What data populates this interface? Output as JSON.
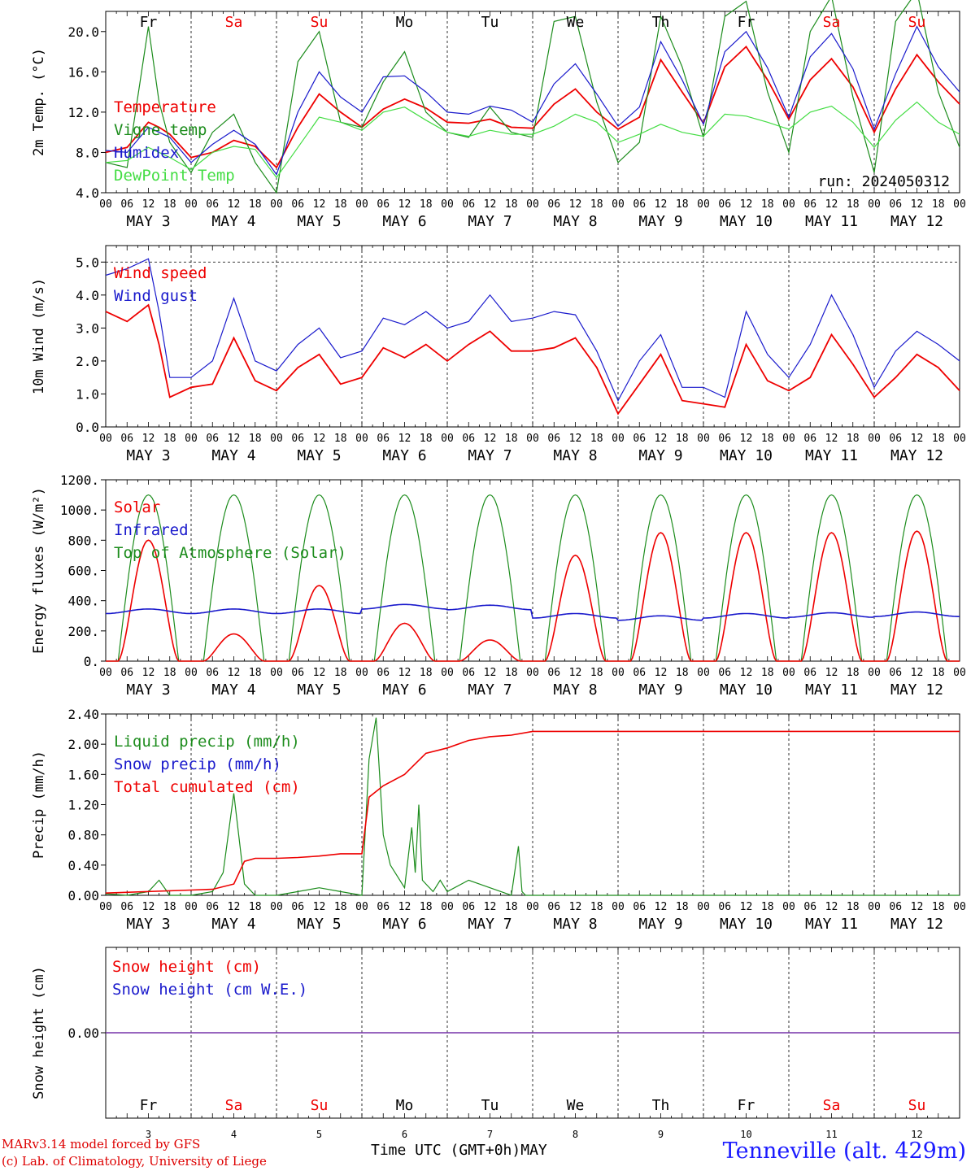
{
  "colors": {
    "red": "#ee0000",
    "green": "#1c8c1c",
    "lightgreen": "#44dd44",
    "blue": "#1a1acc",
    "purple": "#7733aa",
    "weekday": "#000000",
    "weekend": "#ee0000"
  },
  "days": {
    "weekdays": [
      "Fr",
      "Sa",
      "Su",
      "Mo",
      "Tu",
      "We",
      "Th",
      "Fr",
      "Sa",
      "Su"
    ],
    "weekend_flags": [
      false,
      true,
      true,
      false,
      false,
      false,
      false,
      false,
      true,
      true
    ],
    "dates": [
      "MAY 3",
      "MAY 4",
      "MAY 5",
      "MAY 6",
      "MAY 7",
      "MAY 8",
      "MAY 9",
      "MAY 10",
      "MAY 11",
      "MAY 12"
    ],
    "day_numbers": [
      "3",
      "4",
      "5",
      "6",
      "7",
      "8",
      "9",
      "10",
      "11",
      "12"
    ],
    "hour_ticks": [
      "00",
      "06",
      "12",
      "18"
    ],
    "final_tick": "00"
  },
  "run_label": "run: 2024050312",
  "footer": {
    "model": "MARv3.14 model forced by GFS",
    "lab": "(c) Lab. of Climatology, University of Liege",
    "axis_title": "Time UTC (GMT+0h)",
    "month": "MAY",
    "station": "Tenneville (alt. 429m)"
  },
  "chart_data": [
    {
      "type": "line",
      "ylabel": "2m Temp. (°C)",
      "ylim": [
        4.0,
        22.0
      ],
      "yticks": [
        "4.0",
        "8.0",
        "12.0",
        "16.0",
        "20.0"
      ],
      "x_hours": [
        0,
        6,
        12,
        15,
        18,
        24,
        30,
        36,
        42,
        48,
        54,
        60,
        66,
        72,
        78,
        84,
        90,
        96,
        102,
        108,
        114,
        120,
        126,
        132,
        138,
        144,
        150,
        156,
        162,
        168,
        174,
        180,
        186,
        192,
        198,
        204,
        210,
        216,
        222,
        228,
        234,
        240
      ],
      "series": [
        {
          "name": "Temperature",
          "color": "red",
          "values": [
            8.0,
            8.5,
            11.0,
            10.5,
            9.8,
            7.5,
            8.0,
            9.2,
            8.6,
            6.5,
            10.5,
            13.8,
            12.0,
            10.5,
            12.3,
            13.3,
            12.4,
            11.0,
            10.9,
            11.3,
            10.5,
            10.4,
            12.8,
            14.3,
            12.0,
            10.3,
            11.5,
            17.2,
            14.0,
            10.9,
            16.5,
            18.5,
            15.2,
            11.3,
            15.2,
            17.3,
            14.5,
            10.0,
            14.3,
            17.7,
            15.0,
            12.8
          ]
        },
        {
          "name": "Vigne temp",
          "color": "green",
          "values": [
            7.0,
            6.5,
            20.5,
            13.0,
            9.0,
            6.0,
            10.0,
            11.8,
            7.0,
            4.0,
            17.0,
            20.0,
            11.0,
            10.5,
            15.0,
            18.0,
            12.0,
            10.0,
            9.5,
            12.5,
            10.0,
            9.5,
            21.0,
            21.5,
            13.0,
            7.0,
            9.0,
            21.5,
            16.5,
            9.5,
            21.5,
            23.0,
            14.0,
            8.0,
            20.0,
            23.5,
            13.5,
            6.0,
            21.0,
            24.0,
            14.0,
            8.5
          ]
        },
        {
          "name": "Humidex",
          "color": "blue",
          "values": [
            8.2,
            8.0,
            10.5,
            10.0,
            9.5,
            7.0,
            8.8,
            10.2,
            8.8,
            5.8,
            12.0,
            16.0,
            13.5,
            12.0,
            15.5,
            15.6,
            14.0,
            12.0,
            11.8,
            12.6,
            12.2,
            11.0,
            14.8,
            16.8,
            13.8,
            10.6,
            12.5,
            19.0,
            15.2,
            10.8,
            18.0,
            20.0,
            16.4,
            11.5,
            17.5,
            19.8,
            16.3,
            10.3,
            15.8,
            20.5,
            16.5,
            14.0
          ]
        },
        {
          "name": "DewPoint Temp",
          "color": "lightgreen",
          "values": [
            7.0,
            7.2,
            8.5,
            8.0,
            7.5,
            6.3,
            8.0,
            8.6,
            8.3,
            5.5,
            8.5,
            11.5,
            11.0,
            10.2,
            12.0,
            12.5,
            11.2,
            10.0,
            9.6,
            10.2,
            9.8,
            9.8,
            10.6,
            11.8,
            11.0,
            9.0,
            9.8,
            10.8,
            10.0,
            9.6,
            11.8,
            11.6,
            11.0,
            10.3,
            12.0,
            12.6,
            11.0,
            8.5,
            11.2,
            13.0,
            11.0,
            9.8
          ]
        }
      ]
    },
    {
      "type": "line",
      "ylabel": "10m Wind (m/s)",
      "ylim": [
        0.0,
        5.5
      ],
      "yticks": [
        "0.0",
        "1.0",
        "2.0",
        "3.0",
        "4.0",
        "5.0"
      ],
      "x_hours": [
        0,
        6,
        12,
        15,
        18,
        24,
        30,
        36,
        42,
        48,
        54,
        60,
        66,
        72,
        78,
        84,
        90,
        96,
        102,
        108,
        114,
        120,
        126,
        132,
        138,
        144,
        150,
        156,
        162,
        168,
        174,
        180,
        186,
        192,
        198,
        204,
        210,
        216,
        222,
        228,
        234,
        240
      ],
      "series": [
        {
          "name": "Wind speed",
          "color": "red",
          "values": [
            3.5,
            3.2,
            3.7,
            2.5,
            0.9,
            1.2,
            1.3,
            2.7,
            1.4,
            1.1,
            1.8,
            2.2,
            1.3,
            1.5,
            2.4,
            2.1,
            2.5,
            2.0,
            2.5,
            2.9,
            2.3,
            2.3,
            2.4,
            2.7,
            1.8,
            0.4,
            1.3,
            2.2,
            0.8,
            0.7,
            0.6,
            2.5,
            1.4,
            1.1,
            1.5,
            2.8,
            1.9,
            0.9,
            1.5,
            2.2,
            1.8,
            1.1
          ]
        },
        {
          "name": "Wind gust",
          "color": "blue",
          "values": [
            4.6,
            4.8,
            5.1,
            3.5,
            1.5,
            1.5,
            2.0,
            3.9,
            2.0,
            1.7,
            2.5,
            3.0,
            2.1,
            2.3,
            3.3,
            3.1,
            3.5,
            3.0,
            3.2,
            4.0,
            3.2,
            3.3,
            3.5,
            3.4,
            2.3,
            0.8,
            2.0,
            2.8,
            1.2,
            1.2,
            0.9,
            3.5,
            2.2,
            1.5,
            2.5,
            4.0,
            2.8,
            1.2,
            2.3,
            2.9,
            2.5,
            2.0
          ]
        }
      ]
    },
    {
      "type": "line",
      "ylabel": "Energy fluxes (W/m²)",
      "ylim": [
        0,
        1200
      ],
      "yticks": [
        "0.",
        "200.",
        "400.",
        "600.",
        "800.",
        "1000.",
        "1200."
      ],
      "toa_peak": 1100,
      "solar_peaks": [
        800,
        180,
        500,
        250,
        140,
        700,
        850,
        850,
        850,
        860
      ],
      "infrared_base": [
        330,
        330,
        330,
        360,
        355,
        300,
        285,
        300,
        305,
        310
      ],
      "series": [
        {
          "name": "Solar",
          "color": "red"
        },
        {
          "name": "Infrared",
          "color": "blue"
        },
        {
          "name": "Top of Atmosphere (Solar)",
          "color": "green"
        }
      ]
    },
    {
      "type": "line",
      "ylabel": "Precip (mm/h)",
      "ylim": [
        0.0,
        2.4
      ],
      "yticks": [
        "0.00",
        "0.40",
        "0.80",
        "1.20",
        "1.60",
        "2.00",
        "2.40"
      ],
      "x_hours": [
        0,
        6,
        12,
        15,
        18,
        24,
        30,
        33,
        36,
        39,
        42,
        48,
        54,
        60,
        66,
        72,
        74,
        76,
        78,
        80,
        84,
        86,
        87,
        88,
        89,
        90,
        92,
        94,
        96,
        102,
        108,
        114,
        116,
        117,
        118,
        120,
        240
      ],
      "series": [
        {
          "name": "Liquid precip (mm/h)",
          "color": "green",
          "values": [
            0.02,
            0.0,
            0.05,
            0.2,
            0.0,
            0.0,
            0.05,
            0.3,
            1.35,
            0.15,
            0.0,
            0.0,
            0.05,
            0.1,
            0.05,
            0.0,
            1.8,
            2.35,
            0.8,
            0.4,
            0.1,
            0.9,
            0.3,
            1.2,
            0.2,
            0.15,
            0.05,
            0.2,
            0.05,
            0.2,
            0.1,
            0.0,
            0.65,
            0.05,
            0.0,
            0.0,
            0.0
          ]
        },
        {
          "name": "Snow precip (mm/h)",
          "color": "blue",
          "values": []
        },
        {
          "name": "Total cumulated (cm)",
          "color": "red",
          "x_hours": [
            0,
            24,
            30,
            36,
            39,
            42,
            48,
            54,
            60,
            66,
            72,
            74,
            78,
            84,
            90,
            96,
            102,
            108,
            114,
            120,
            240
          ],
          "values": [
            0.03,
            0.07,
            0.08,
            0.15,
            0.45,
            0.49,
            0.49,
            0.5,
            0.52,
            0.55,
            0.55,
            1.3,
            1.45,
            1.6,
            1.88,
            1.95,
            2.05,
            2.1,
            2.12,
            2.17,
            2.17
          ]
        }
      ]
    },
    {
      "type": "line",
      "ylabel": "Snow height (cm)",
      "ylim": [
        -1.0,
        1.0
      ],
      "yticks": [
        "0.00"
      ],
      "series": [
        {
          "name": "Snow height (cm)",
          "color": "red",
          "values": [
            0.0,
            0.0
          ]
        },
        {
          "name": "Snow height (cm W.E.)",
          "color": "blue",
          "values": [
            0.0,
            0.0
          ]
        }
      ]
    }
  ]
}
